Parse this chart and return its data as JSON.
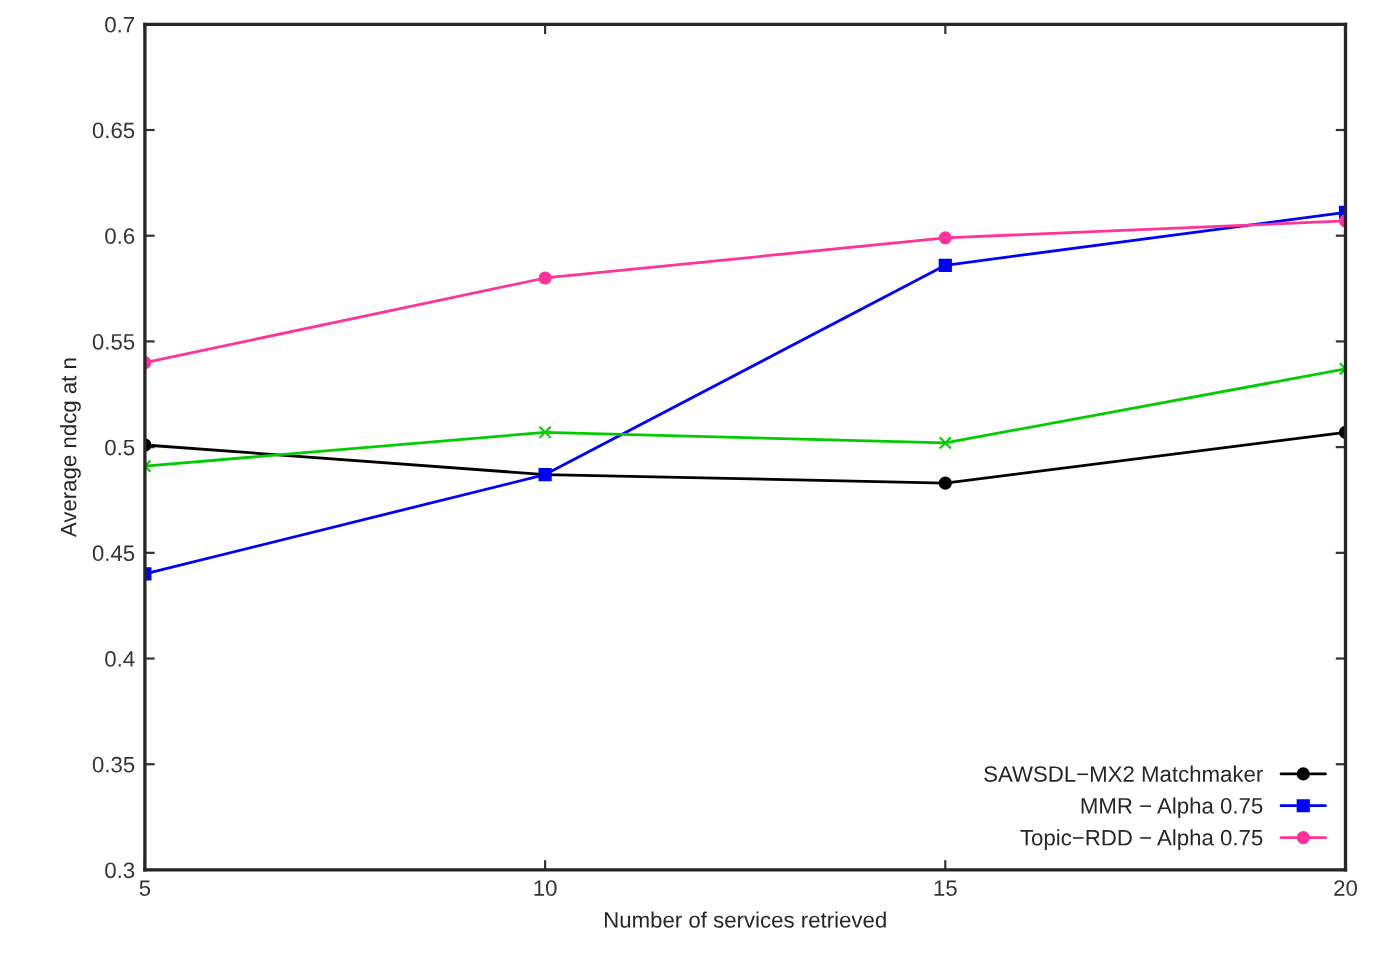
{
  "chart_data": {
    "type": "line",
    "xlabel": "Number of services retrieved",
    "ylabel": "Average ndcg at n",
    "x": [
      5,
      10,
      15,
      20
    ],
    "xlim": [
      5,
      20
    ],
    "xticks": [
      5,
      10,
      15,
      20
    ],
    "ylim": [
      0.3,
      0.7
    ],
    "yticks": [
      0.3,
      0.35,
      0.4,
      0.45,
      0.5,
      0.55,
      0.6,
      0.65,
      0.7
    ],
    "grid": false,
    "legend": "bottom right",
    "line_style": "solid",
    "series": [
      {
        "name": "SAWSDL−MX2 Matchmaker",
        "color": "#000000",
        "marker": "circle",
        "values": [
          0.501,
          0.487,
          0.483,
          0.507
        ]
      },
      {
        "name": "MMR − Alpha 0.75",
        "color": "#0000ff",
        "marker": "square",
        "values": [
          0.44,
          0.487,
          0.586,
          0.611
        ]
      },
      {
        "color": "#00cc00",
        "marker": "cross",
        "values": [
          0.491,
          0.507,
          0.502,
          0.537
        ]
      },
      {
        "name": "Topic−RDD − Alpha 0.75",
        "color": "#ff3399",
        "marker": "circle",
        "values": [
          0.54,
          0.58,
          0.599,
          0.607
        ]
      }
    ]
  }
}
